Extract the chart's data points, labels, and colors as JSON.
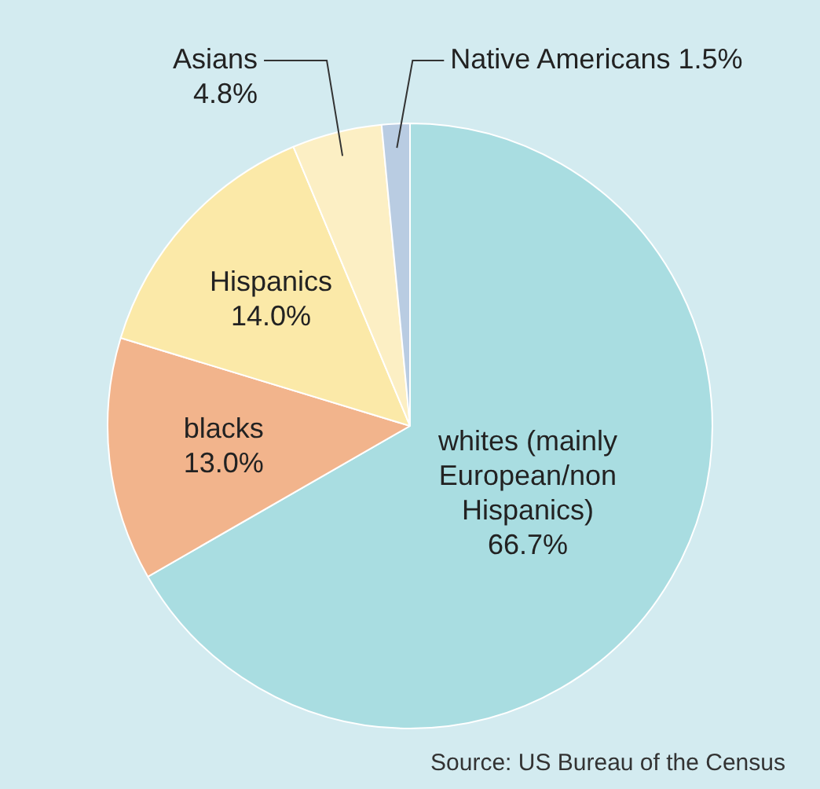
{
  "chart_data": {
    "type": "pie",
    "categories": [
      "whites (mainly European/non Hispanics)",
      "blacks",
      "Hispanics",
      "Asians",
      "Native Americans"
    ],
    "values": [
      66.7,
      13.0,
      14.0,
      4.8,
      1.5
    ],
    "colors": [
      "#a9dde1",
      "#f2b48c",
      "#fbe9a8",
      "#fcefc4",
      "#b9cce2"
    ],
    "value_labels": [
      "66.7%",
      "13.0%",
      "14.0%",
      "4.8%",
      "1.5%"
    ],
    "legend": false,
    "annotations": [
      "Source: US Bureau of the Census"
    ]
  }
}
